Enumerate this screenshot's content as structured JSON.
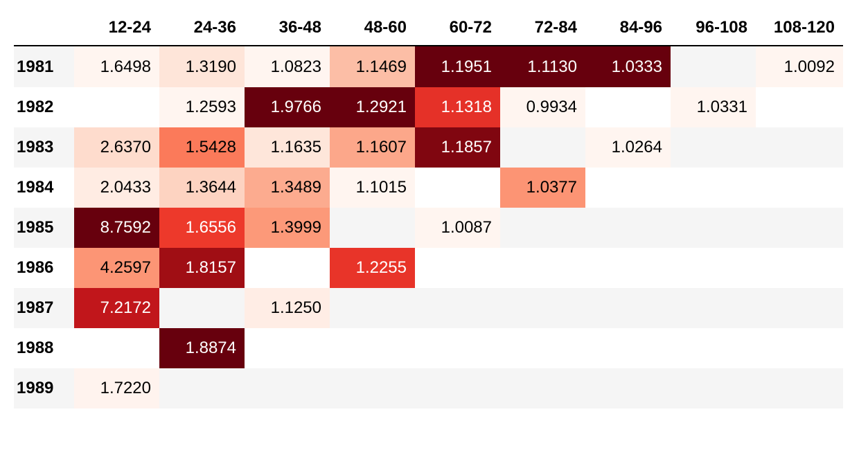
{
  "chart_data": {
    "type": "heatmap",
    "title": "",
    "xlabel": "",
    "ylabel": "",
    "columns": [
      "12-24",
      "24-36",
      "36-48",
      "48-60",
      "60-72",
      "72-84",
      "84-96",
      "96-108",
      "108-120"
    ],
    "rows": [
      "1981",
      "1982",
      "1983",
      "1984",
      "1985",
      "1986",
      "1987",
      "1988",
      "1989"
    ],
    "values": [
      [
        "1.6498",
        "1.3190",
        "1.0823",
        "1.1469",
        "1.1951",
        "1.1130",
        "1.0333",
        "",
        "1.0092"
      ],
      [
        "",
        "1.2593",
        "1.9766",
        "1.2921",
        "1.1318",
        "0.9934",
        "",
        "1.0331",
        ""
      ],
      [
        "2.6370",
        "1.5428",
        "1.1635",
        "1.1607",
        "1.1857",
        "",
        "1.0264",
        "",
        ""
      ],
      [
        "2.0433",
        "1.3644",
        "1.3489",
        "1.1015",
        "",
        "1.0377",
        "",
        "",
        ""
      ],
      [
        "8.7592",
        "1.6556",
        "1.3999",
        "",
        "1.0087",
        "",
        "",
        "",
        ""
      ],
      [
        "4.2597",
        "1.8157",
        "",
        "1.2255",
        "",
        "",
        "",
        "",
        ""
      ],
      [
        "7.2172",
        "",
        "1.1250",
        "",
        "",
        "",
        "",
        "",
        ""
      ],
      [
        "",
        "1.8874",
        "",
        "",
        "",
        "",
        "",
        "",
        ""
      ],
      [
        "1.7220",
        "",
        "",
        "",
        "",
        "",
        "",
        "",
        ""
      ]
    ],
    "colormap": "Reds",
    "colormap_colors": [
      "#fff5f0",
      "#fee0d2",
      "#fcbba1",
      "#fc9272",
      "#fb6a4a",
      "#ef3b2c",
      "#cb181d",
      "#a50f15",
      "#67000d"
    ],
    "colormap_scope": "per-column",
    "grid": false,
    "legend": "none",
    "colors": {
      "text_dark": "#000000",
      "text_light": "#ffffff",
      "row_stripe": "#f5f5f5",
      "row_plain": "#ffffff",
      "header_rule": "#000000"
    }
  }
}
